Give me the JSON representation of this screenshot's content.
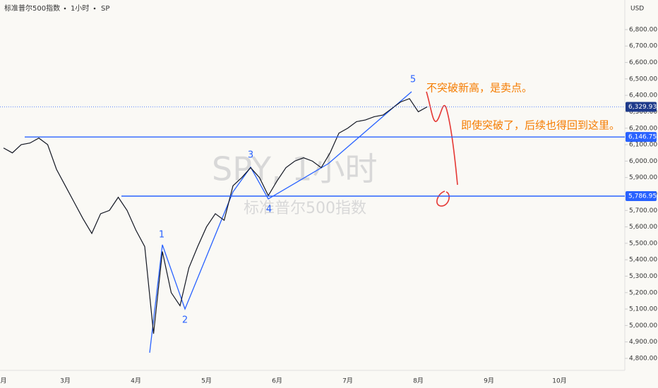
{
  "chart_data": {
    "type": "line",
    "header": {
      "symbol": "标准普尔500指数",
      "interval": "1小时",
      "exchange": "SP"
    },
    "currency": "USD",
    "watermark": "SPY, 1小时",
    "watermark_sub": "标准普尔500指数",
    "categories": [
      "月",
      null,
      null,
      null,
      null,
      null,
      null,
      "3月",
      null,
      null,
      null,
      null,
      null,
      null,
      null,
      "4月",
      null,
      null,
      null,
      null,
      null,
      null,
      null,
      "5月",
      null,
      null,
      null,
      null,
      null,
      null,
      null,
      "6月",
      null,
      null,
      null,
      null,
      null,
      null,
      null,
      "7月",
      null,
      null,
      null,
      null,
      null,
      null,
      null,
      "8月",
      null,
      null,
      null,
      null,
      null,
      null,
      null,
      "9月",
      null,
      null,
      null,
      null,
      null,
      null,
      null,
      "10月",
      null,
      null,
      null,
      null,
      null,
      null,
      null
    ],
    "series": [
      {
        "name": "SPY",
        "color": "#131722",
        "values": [
          6080,
          6050,
          6100,
          6110,
          6140,
          6100,
          5950,
          5850,
          5750,
          5650,
          5560,
          5680,
          5700,
          5780,
          5700,
          5580,
          5480,
          4950,
          5450,
          5200,
          5120,
          5350,
          5480,
          5600,
          5680,
          5640,
          5850,
          5900,
          5960,
          5900,
          5790,
          5880,
          5960,
          6000,
          6020,
          6000,
          5960,
          6050,
          6170,
          6200,
          6240,
          6250,
          6270,
          6280,
          6320,
          6360,
          6380,
          6300,
          6330,
          null,
          null,
          null,
          null,
          null,
          null,
          null,
          null,
          null,
          null,
          null,
          null,
          null,
          null,
          null,
          null,
          null,
          null,
          null,
          null,
          null,
          null
        ]
      }
    ],
    "ylim": [
      4727,
      6980
    ],
    "yticks": [
      {
        "value": 4800,
        "label": "4,800.00"
      },
      {
        "value": 4900,
        "label": "4,900.00"
      },
      {
        "value": 5000,
        "label": "5,000.00"
      },
      {
        "value": 5100,
        "label": "5,100.00"
      },
      {
        "value": 5200,
        "label": "5,200.00"
      },
      {
        "value": 5300,
        "label": "5,300.00"
      },
      {
        "value": 5400,
        "label": "5,400.00"
      },
      {
        "value": 5500,
        "label": "5,500.00"
      },
      {
        "value": 5600,
        "label": "5,600.00"
      },
      {
        "value": 5700,
        "label": "5,700.00"
      },
      {
        "value": 5800,
        "label": "5,800.00"
      },
      {
        "value": 5900,
        "label": "5,900.00"
      },
      {
        "value": 6000,
        "label": "6,000.00"
      },
      {
        "value": 6100,
        "label": "6,100.00"
      },
      {
        "value": 6200,
        "label": "6,200.00"
      },
      {
        "value": 6300,
        "label": "6,300.00"
      },
      {
        "value": 6400,
        "label": "6,400.00"
      },
      {
        "value": 6500,
        "label": "6,500.00"
      },
      {
        "value": 6600,
        "label": "6,600.00"
      },
      {
        "value": 6700,
        "label": "6,700.00"
      },
      {
        "value": 6800,
        "label": "6,800.00"
      }
    ],
    "price_tags": [
      {
        "value": 6329.93,
        "label": "6,329.93",
        "color": "#2962ff"
      },
      {
        "value": 6146.75,
        "label": "6,146.75",
        "color": "#2962ff"
      },
      {
        "value": 5786.95,
        "label": "5,786.95",
        "color": "#2962ff"
      }
    ],
    "wave_labels": [
      "1",
      "2",
      "3",
      "4",
      "5"
    ],
    "annotations": [
      "不突破新高，是卖点。",
      "即使突破了，后续也得回到这里。"
    ]
  }
}
